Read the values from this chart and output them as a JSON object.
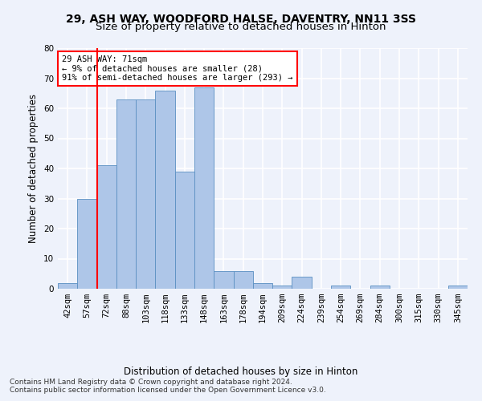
{
  "title": "29, ASH WAY, WOODFORD HALSE, DAVENTRY, NN11 3SS",
  "subtitle": "Size of property relative to detached houses in Hinton",
  "xlabel": "Distribution of detached houses by size in Hinton",
  "ylabel": "Number of detached properties",
  "bar_labels": [
    "42sqm",
    "57sqm",
    "72sqm",
    "88sqm",
    "103sqm",
    "118sqm",
    "133sqm",
    "148sqm",
    "163sqm",
    "178sqm",
    "194sqm",
    "209sqm",
    "224sqm",
    "239sqm",
    "254sqm",
    "269sqm",
    "284sqm",
    "300sqm",
    "315sqm",
    "330sqm",
    "345sqm"
  ],
  "bar_values": [
    2,
    30,
    41,
    63,
    63,
    66,
    39,
    67,
    6,
    6,
    2,
    1,
    4,
    0,
    1,
    0,
    1,
    0,
    0,
    0,
    1
  ],
  "bar_color": "#aec6e8",
  "bar_edge_color": "#5a8fc2",
  "annotation_text": "29 ASH WAY: 71sqm\n← 9% of detached houses are smaller (28)\n91% of semi-detached houses are larger (293) →",
  "annotation_box_color": "white",
  "annotation_box_edge_color": "red",
  "vline_color": "red",
  "vline_x": 1.5,
  "footer_line1": "Contains HM Land Registry data © Crown copyright and database right 2024.",
  "footer_line2": "Contains public sector information licensed under the Open Government Licence v3.0.",
  "ylim": [
    0,
    80
  ],
  "yticks": [
    0,
    10,
    20,
    30,
    40,
    50,
    60,
    70,
    80
  ],
  "background_color": "#eef2fb",
  "grid_color": "white",
  "title_fontsize": 10,
  "subtitle_fontsize": 9.5,
  "axis_label_fontsize": 8.5,
  "tick_fontsize": 7.5,
  "footer_fontsize": 6.5,
  "annot_fontsize": 7.5
}
